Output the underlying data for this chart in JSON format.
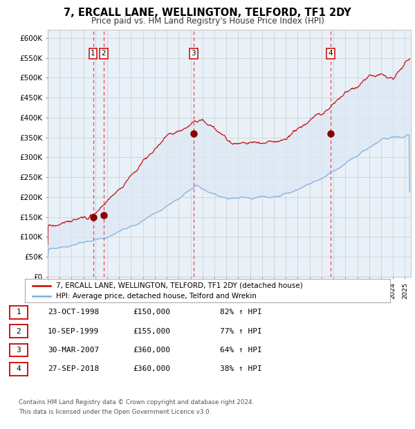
{
  "title": "7, ERCALL LANE, WELLINGTON, TELFORD, TF1 2DY",
  "subtitle": "Price paid vs. HM Land Registry's House Price Index (HPI)",
  "background_color": "#ffffff",
  "plot_bg_color": "#e8f0f8",
  "grid_color": "#cccccc",
  "fill_color": "#dce8f5",
  "red_line_color": "#cc0000",
  "blue_line_color": "#7aaddd",
  "sale_marker_color": "#880000",
  "vline_color": "#ee3333",
  "ylim": [
    0,
    620000
  ],
  "yticks": [
    0,
    50000,
    100000,
    150000,
    200000,
    250000,
    300000,
    350000,
    400000,
    450000,
    500000,
    550000,
    600000
  ],
  "ytick_labels": [
    "£0",
    "£50K",
    "£100K",
    "£150K",
    "£200K",
    "£250K",
    "£300K",
    "£350K",
    "£400K",
    "£450K",
    "£500K",
    "£550K",
    "£600K"
  ],
  "sales": [
    {
      "num": 1,
      "date_str": "23-OCT-1998",
      "year": 1998.81,
      "price": 150000
    },
    {
      "num": 2,
      "date_str": "10-SEP-1999",
      "year": 1999.7,
      "price": 155000
    },
    {
      "num": 3,
      "date_str": "30-MAR-2007",
      "year": 2007.25,
      "price": 360000
    },
    {
      "num": 4,
      "date_str": "27-SEP-2018",
      "year": 2018.74,
      "price": 360000
    }
  ],
  "legend_line1": "7, ERCALL LANE, WELLINGTON, TELFORD, TF1 2DY (detached house)",
  "legend_line2": "HPI: Average price, detached house, Telford and Wrekin",
  "footer1": "Contains HM Land Registry data © Crown copyright and database right 2024.",
  "footer2": "This data is licensed under the Open Government Licence v3.0.",
  "table_rows": [
    [
      "1",
      "23-OCT-1998",
      "£150,000",
      "82% ↑ HPI"
    ],
    [
      "2",
      "10-SEP-1999",
      "£155,000",
      "77% ↑ HPI"
    ],
    [
      "3",
      "30-MAR-2007",
      "£360,000",
      "64% ↑ HPI"
    ],
    [
      "4",
      "27-SEP-2018",
      "£360,000",
      "38% ↑ HPI"
    ]
  ],
  "xmin": 1995.0,
  "xmax": 2025.5
}
